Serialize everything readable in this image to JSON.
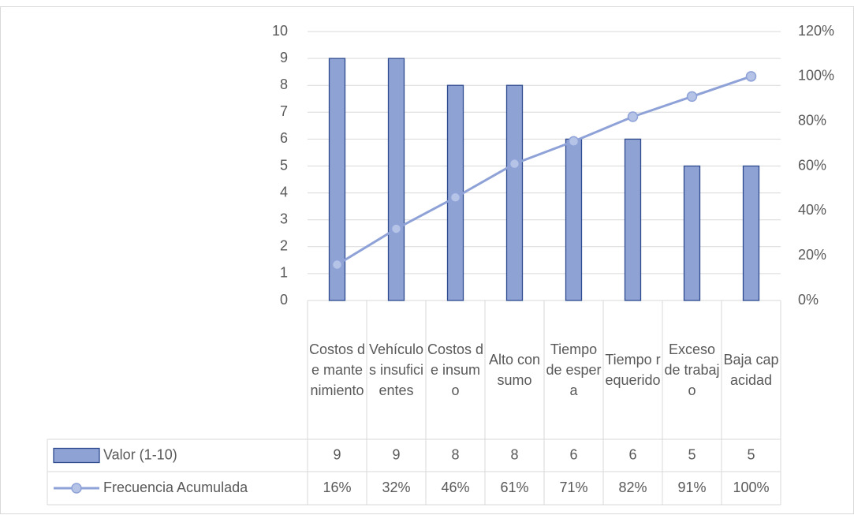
{
  "chart_data": {
    "type": "bar",
    "categories": [
      "Costos de mantenimiento",
      "Vehículos insuficientes",
      "Costos de insumo",
      "Alto consumo",
      "Tiempo de espera",
      "Tiempo requerido",
      "Exceso de trabajo",
      "Baja capacidad"
    ],
    "series": [
      {
        "name": "Valor (1-10)",
        "type": "bar",
        "color": "#8fa2d4",
        "values": [
          9,
          9,
          8,
          8,
          6,
          6,
          5,
          5
        ]
      },
      {
        "name": "Frecuencia Acumulada",
        "type": "line",
        "axis": "y2",
        "color": "#8fa2d8",
        "values": [
          16,
          32,
          46,
          61,
          71,
          82,
          91,
          100
        ],
        "value_labels": [
          "16%",
          "32%",
          "46%",
          "61%",
          "71%",
          "82%",
          "91%",
          "100%"
        ]
      }
    ],
    "ylim": [
      0,
      10
    ],
    "yticks": [
      0,
      1,
      2,
      3,
      4,
      5,
      6,
      7,
      8,
      9,
      10
    ],
    "y2lim": [
      0,
      120
    ],
    "y2ticks": [
      {
        "value": 0,
        "label": "0%"
      },
      {
        "value": 20,
        "label": "20%"
      },
      {
        "value": 40,
        "label": "40%"
      },
      {
        "value": 60,
        "label": "60%"
      },
      {
        "value": 80,
        "label": "80%"
      },
      {
        "value": 100,
        "label": "100%"
      },
      {
        "value": 120,
        "label": "120%"
      }
    ],
    "grid": true,
    "data_table": true
  }
}
